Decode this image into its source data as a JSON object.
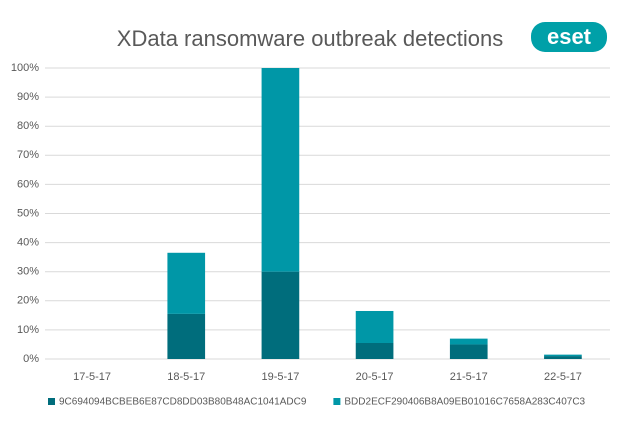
{
  "chart_data": {
    "type": "stacked-bar",
    "title": "XData ransomware outbreak detections",
    "logo": "eset",
    "categories": [
      "17-5-17",
      "18-5-17",
      "19-5-17",
      "20-5-17",
      "21-5-17",
      "22-5-17"
    ],
    "series": [
      {
        "name": "9C694094BCBEB6E87CD8DD03B80B48AC1041ADC9",
        "color": "#006d7c",
        "values": [
          0,
          15.5,
          30,
          5.5,
          5,
          1
        ]
      },
      {
        "name": "BDD2ECF290406B8A09EB01016C7658A283C407C3",
        "color": "#0097a7",
        "values": [
          0,
          21,
          70,
          11,
          2,
          0.5
        ]
      }
    ],
    "ylim": [
      0,
      100
    ],
    "yticks": [
      {
        "value": 0,
        "label": "0%"
      },
      {
        "value": 10,
        "label": "10%"
      },
      {
        "value": 20,
        "label": "20%"
      },
      {
        "value": 30,
        "label": "30%"
      },
      {
        "value": 40,
        "label": "40%"
      },
      {
        "value": 50,
        "label": "50%"
      },
      {
        "value": 60,
        "label": "60%"
      },
      {
        "value": 70,
        "label": "70%"
      },
      {
        "value": 80,
        "label": "80%"
      },
      {
        "value": 90,
        "label": "90%"
      },
      {
        "value": 100,
        "label": "100%"
      }
    ],
    "grid": true
  }
}
